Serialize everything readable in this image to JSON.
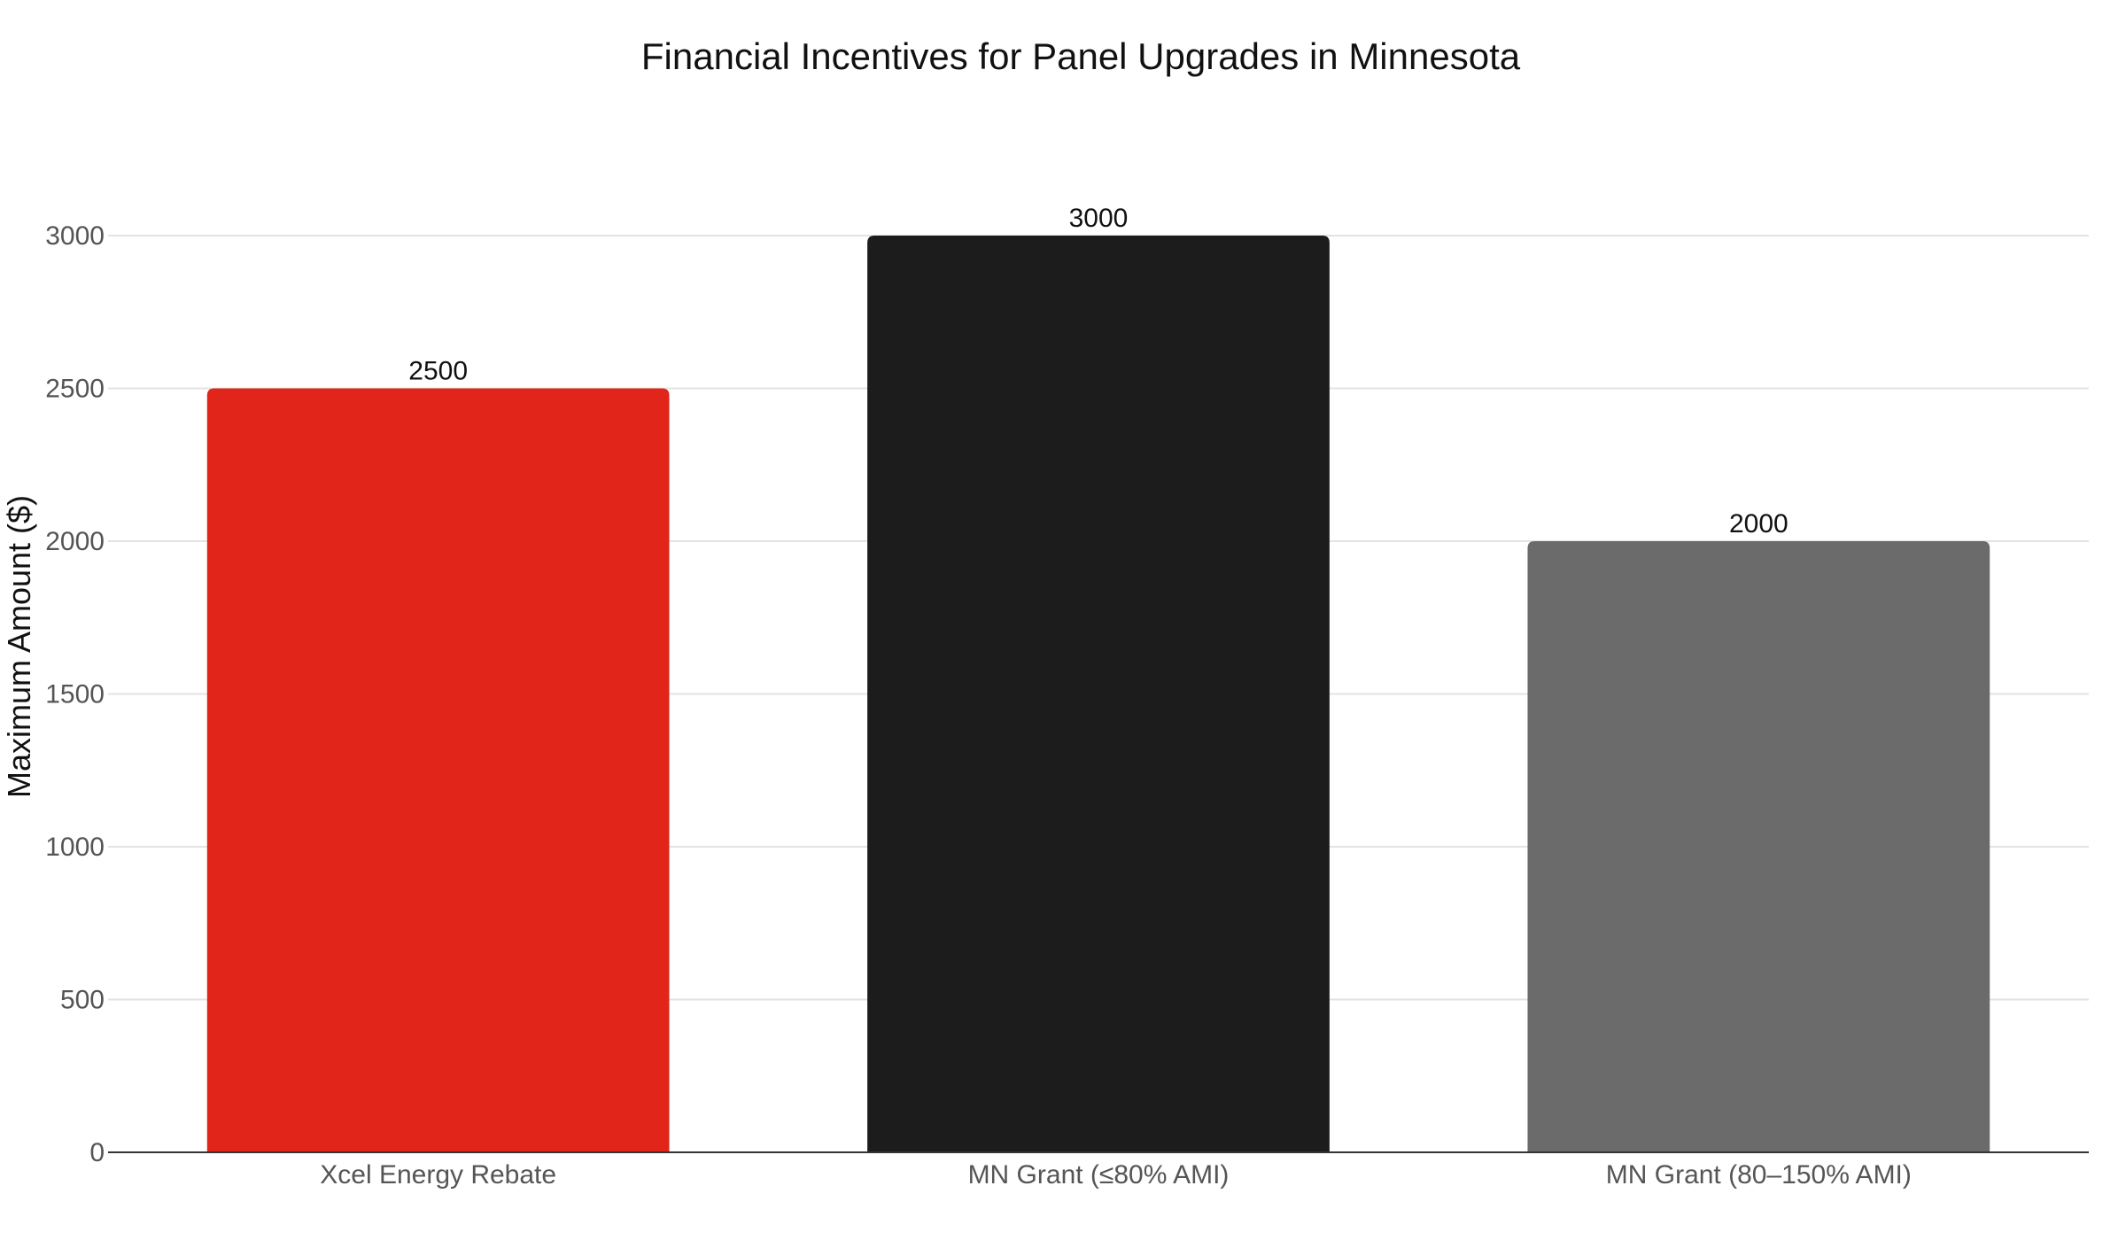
{
  "chart_data": {
    "type": "bar",
    "title": "Financial Incentives for Panel Upgrades in Minnesota",
    "xlabel": "",
    "ylabel": "Maximum Amount ($)",
    "categories": [
      "Xcel Energy Rebate",
      "MN Grant (≤80% AMI)",
      "MN Grant (80–150% AMI)"
    ],
    "values": [
      2500,
      3000,
      2000
    ],
    "data_labels": [
      "2500",
      "3000",
      "2000"
    ],
    "bar_colors": [
      "#e1251b",
      "#1c1c1c",
      "#6b6b6b"
    ],
    "ylim": [
      0,
      3000
    ],
    "yticks": [
      0,
      500,
      1000,
      1500,
      2000,
      2500,
      3000
    ],
    "grid": true,
    "legend": false
  }
}
